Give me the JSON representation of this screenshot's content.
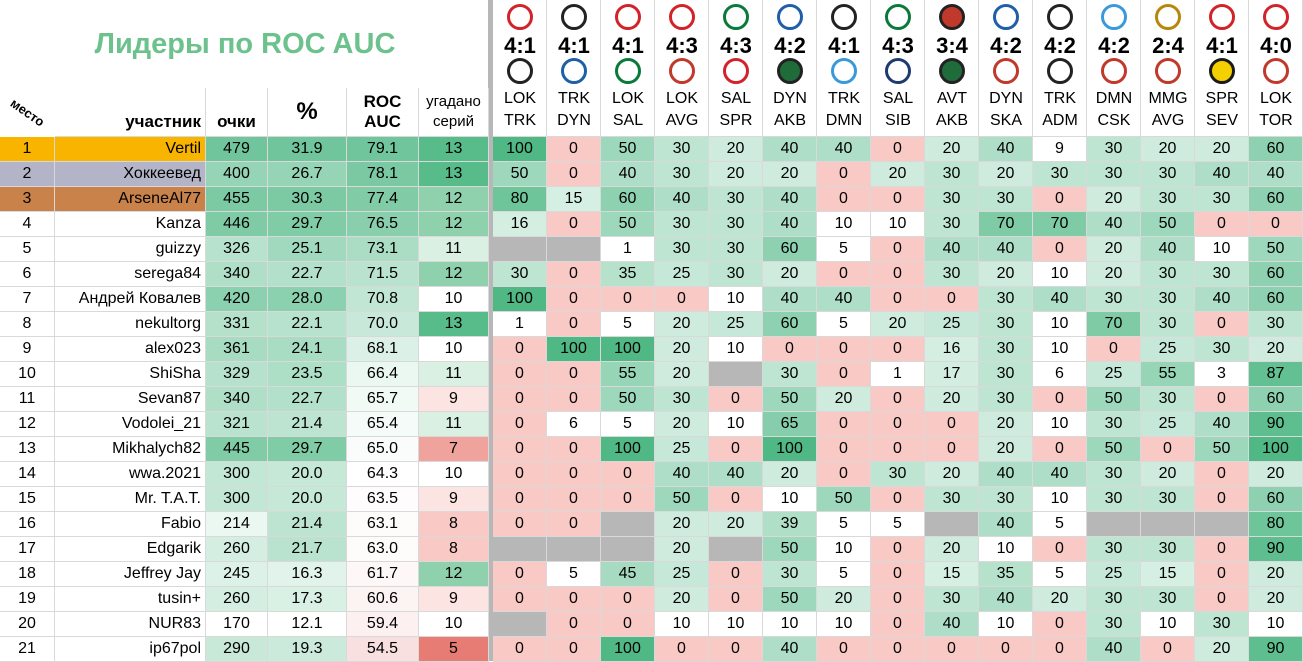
{
  "title": "Лидеры по ROC AUC",
  "headers": {
    "place": "место",
    "participant": "участник",
    "points": "очки",
    "pct": "%",
    "roc": "ROC\nAUC",
    "guessed": "угадано\nсерий"
  },
  "series": [
    {
      "score": "4:1",
      "top": "LOK",
      "bottom": "TRK",
      "top_logo": "lok-logo",
      "bottom_logo": "trk-logo"
    },
    {
      "score": "4:1",
      "top": "TRK",
      "bottom": "DYN",
      "top_logo": "trk-logo",
      "bottom_logo": "dyn-logo"
    },
    {
      "score": "4:1",
      "top": "LOK",
      "bottom": "SAL",
      "top_logo": "lok-logo",
      "bottom_logo": "sal-logo"
    },
    {
      "score": "4:3",
      "top": "LOK",
      "bottom": "AVG",
      "top_logo": "lok-logo",
      "bottom_logo": "avg-logo"
    },
    {
      "score": "4:3",
      "top": "SAL",
      "bottom": "SPR",
      "top_logo": "sal-logo",
      "bottom_logo": "spr-logo"
    },
    {
      "score": "4:2",
      "top": "DYN",
      "bottom": "AKB",
      "top_logo": "dyn-logo",
      "bottom_logo": "akb-logo"
    },
    {
      "score": "4:1",
      "top": "TRK",
      "bottom": "DMN",
      "top_logo": "trk-logo",
      "bottom_logo": "dmn-logo"
    },
    {
      "score": "4:3",
      "top": "SAL",
      "bottom": "SIB",
      "top_logo": "sal-logo",
      "bottom_logo": "sib-logo"
    },
    {
      "score": "3:4",
      "top": "AVT",
      "bottom": "AKB",
      "top_logo": "avt-logo",
      "bottom_logo": "akb-logo"
    },
    {
      "score": "4:2",
      "top": "DYN",
      "bottom": "SKA",
      "top_logo": "dyn-logo",
      "bottom_logo": "ska-logo"
    },
    {
      "score": "4:2",
      "top": "TRK",
      "bottom": "ADM",
      "top_logo": "trk-logo",
      "bottom_logo": "adm-logo"
    },
    {
      "score": "4:2",
      "top": "DMN",
      "bottom": "CSK",
      "top_logo": "dmn-logo",
      "bottom_logo": "csk-logo"
    },
    {
      "score": "2:4",
      "top": "MMG",
      "bottom": "AVG",
      "top_logo": "mmg-logo",
      "bottom_logo": "avg-logo"
    },
    {
      "score": "4:1",
      "top": "SPR",
      "bottom": "SEV",
      "top_logo": "spr-logo",
      "bottom_logo": "sev-logo"
    },
    {
      "score": "4:0",
      "top": "LOK",
      "bottom": "TOR",
      "top_logo": "lok-logo",
      "bottom_logo": "tor-logo"
    }
  ],
  "rows": [
    {
      "place": "1",
      "name": "Vertil",
      "points": "479",
      "pct": "31.9",
      "roc": "79.1",
      "guessed": "13",
      "preds": [
        "100",
        "0",
        "50",
        "30",
        "20",
        "40",
        "40",
        "0",
        "20",
        "40",
        "9",
        "30",
        "20",
        "20",
        "60"
      ]
    },
    {
      "place": "2",
      "name": "Хоккеевед",
      "points": "400",
      "pct": "26.7",
      "roc": "78.1",
      "guessed": "13",
      "preds": [
        "50",
        "0",
        "40",
        "30",
        "20",
        "20",
        "0",
        "20",
        "30",
        "20",
        "30",
        "30",
        "30",
        "40",
        "40"
      ]
    },
    {
      "place": "3",
      "name": "ArseneAl77",
      "points": "455",
      "pct": "30.3",
      "roc": "77.4",
      "guessed": "12",
      "preds": [
        "80",
        "15",
        "60",
        "40",
        "30",
        "40",
        "0",
        "0",
        "30",
        "30",
        "0",
        "20",
        "30",
        "30",
        "60"
      ]
    },
    {
      "place": "4",
      "name": "Kanza",
      "points": "446",
      "pct": "29.7",
      "roc": "76.5",
      "guessed": "12",
      "preds": [
        "16",
        "0",
        "50",
        "30",
        "30",
        "40",
        "10",
        "10",
        "30",
        "70",
        "70",
        "40",
        "50",
        "0",
        "0"
      ]
    },
    {
      "place": "5",
      "name": "guizzy",
      "points": "326",
      "pct": "25.1",
      "roc": "73.1",
      "guessed": "11",
      "preds": [
        "",
        "",
        "1",
        "30",
        "30",
        "60",
        "5",
        "0",
        "40",
        "40",
        "0",
        "20",
        "40",
        "10",
        "50"
      ]
    },
    {
      "place": "6",
      "name": "serega84",
      "points": "340",
      "pct": "22.7",
      "roc": "71.5",
      "guessed": "12",
      "preds": [
        "30",
        "0",
        "35",
        "25",
        "30",
        "20",
        "0",
        "0",
        "30",
        "20",
        "10",
        "20",
        "30",
        "30",
        "60"
      ]
    },
    {
      "place": "7",
      "name": "Андрей Ковалев",
      "points": "420",
      "pct": "28.0",
      "roc": "70.8",
      "guessed": "10",
      "preds": [
        "100",
        "0",
        "0",
        "0",
        "10",
        "40",
        "40",
        "0",
        "0",
        "30",
        "40",
        "30",
        "30",
        "40",
        "60"
      ]
    },
    {
      "place": "8",
      "name": "nekultorg",
      "points": "331",
      "pct": "22.1",
      "roc": "70.0",
      "guessed": "13",
      "preds": [
        "1",
        "0",
        "5",
        "20",
        "25",
        "60",
        "5",
        "20",
        "25",
        "30",
        "10",
        "70",
        "30",
        "0",
        "30"
      ]
    },
    {
      "place": "9",
      "name": "alex023",
      "points": "361",
      "pct": "24.1",
      "roc": "68.1",
      "guessed": "10",
      "preds": [
        "0",
        "100",
        "100",
        "20",
        "10",
        "0",
        "0",
        "0",
        "16",
        "30",
        "10",
        "0",
        "25",
        "30",
        "20"
      ]
    },
    {
      "place": "10",
      "name": "ShiSha",
      "points": "329",
      "pct": "23.5",
      "roc": "66.4",
      "guessed": "11",
      "preds": [
        "0",
        "0",
        "55",
        "20",
        "",
        "30",
        "0",
        "1",
        "17",
        "30",
        "6",
        "25",
        "55",
        "3",
        "87"
      ]
    },
    {
      "place": "11",
      "name": "Sevan87",
      "points": "340",
      "pct": "22.7",
      "roc": "65.7",
      "guessed": "9",
      "preds": [
        "0",
        "0",
        "50",
        "30",
        "0",
        "50",
        "20",
        "0",
        "20",
        "30",
        "0",
        "50",
        "30",
        "0",
        "60"
      ]
    },
    {
      "place": "12",
      "name": "Vodolei_21",
      "points": "321",
      "pct": "21.4",
      "roc": "65.4",
      "guessed": "11",
      "preds": [
        "0",
        "6",
        "5",
        "20",
        "10",
        "65",
        "0",
        "0",
        "0",
        "20",
        "10",
        "30",
        "25",
        "40",
        "90"
      ]
    },
    {
      "place": "13",
      "name": "Mikhalych82",
      "points": "445",
      "pct": "29.7",
      "roc": "65.0",
      "guessed": "7",
      "preds": [
        "0",
        "0",
        "100",
        "25",
        "0",
        "100",
        "0",
        "0",
        "0",
        "20",
        "0",
        "50",
        "0",
        "50",
        "100"
      ]
    },
    {
      "place": "14",
      "name": "wwa.2021",
      "points": "300",
      "pct": "20.0",
      "roc": "64.3",
      "guessed": "10",
      "preds": [
        "0",
        "0",
        "0",
        "40",
        "40",
        "20",
        "0",
        "30",
        "20",
        "40",
        "40",
        "30",
        "20",
        "0",
        "20"
      ]
    },
    {
      "place": "15",
      "name": "Mr. T.A.T.",
      "points": "300",
      "pct": "20.0",
      "roc": "63.5",
      "guessed": "9",
      "preds": [
        "0",
        "0",
        "0",
        "50",
        "0",
        "10",
        "50",
        "0",
        "30",
        "30",
        "10",
        "30",
        "30",
        "0",
        "60"
      ]
    },
    {
      "place": "16",
      "name": "Fabio",
      "points": "214",
      "pct": "21.4",
      "roc": "63.1",
      "guessed": "8",
      "preds": [
        "0",
        "0",
        "",
        "20",
        "20",
        "39",
        "5",
        "5",
        "",
        "40",
        "5",
        "",
        "",
        "",
        "80"
      ]
    },
    {
      "place": "17",
      "name": "Edgarik",
      "points": "260",
      "pct": "21.7",
      "roc": "63.0",
      "guessed": "8",
      "preds": [
        "",
        "",
        "",
        "20",
        "",
        "50",
        "10",
        "0",
        "20",
        "10",
        "0",
        "30",
        "30",
        "0",
        "90"
      ]
    },
    {
      "place": "18",
      "name": "Jeffrey Jay",
      "points": "245",
      "pct": "16.3",
      "roc": "61.7",
      "guessed": "12",
      "preds": [
        "0",
        "5",
        "45",
        "25",
        "0",
        "30",
        "5",
        "0",
        "15",
        "35",
        "5",
        "25",
        "15",
        "0",
        "20"
      ]
    },
    {
      "place": "19",
      "name": "tusin+",
      "points": "260",
      "pct": "17.3",
      "roc": "60.6",
      "guessed": "9",
      "preds": [
        "0",
        "0",
        "0",
        "20",
        "0",
        "50",
        "20",
        "0",
        "30",
        "40",
        "20",
        "30",
        "30",
        "0",
        "20"
      ]
    },
    {
      "place": "20",
      "name": "NUR83",
      "points": "170",
      "pct": "12.1",
      "roc": "59.4",
      "guessed": "10",
      "preds": [
        "",
        "0",
        "0",
        "10",
        "10",
        "10",
        "10",
        "0",
        "40",
        "10",
        "0",
        "30",
        "10",
        "30",
        "10"
      ]
    },
    {
      "place": "21",
      "name": "ip67pol",
      "points": "290",
      "pct": "19.3",
      "roc": "54.5",
      "guessed": "5",
      "preds": [
        "0",
        "0",
        "100",
        "0",
        "0",
        "40",
        "0",
        "0",
        "0",
        "0",
        "0",
        "40",
        "0",
        "20",
        "90"
      ]
    }
  ],
  "colors": {
    "title": "#6cc18c",
    "gold": "#f9b400",
    "silver": "#b4b4c8",
    "bronze": "#c8824a",
    "green_strong": "#57bb8a",
    "green_light": "#d9f0e2",
    "red_light": "#f8c9c5",
    "red_strong": "#e67c73",
    "missing": "#b7b7b7"
  }
}
